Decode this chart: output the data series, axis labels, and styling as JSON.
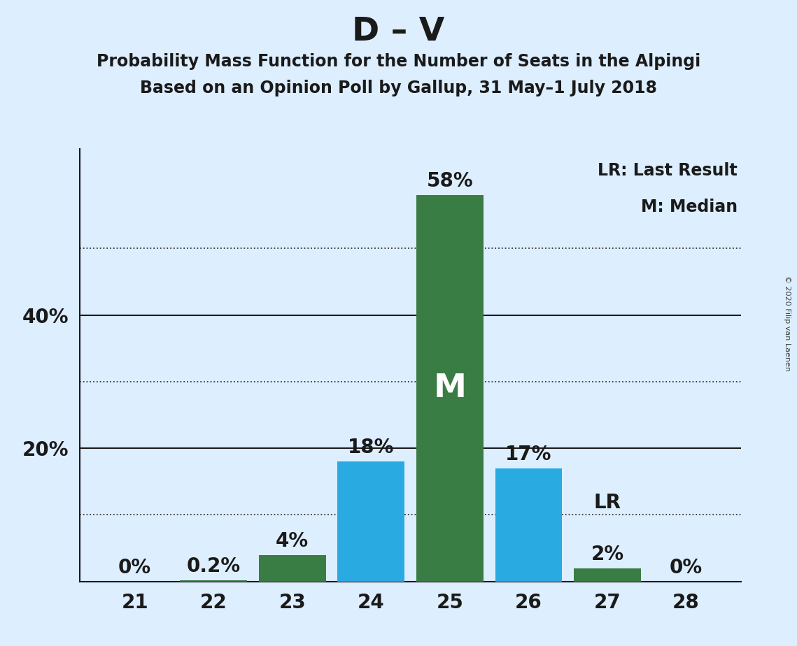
{
  "title": "D – V",
  "subtitle1": "Probability Mass Function for the Number of Seats in the Alpingi",
  "subtitle2": "Based on an Opinion Poll by Gallup, 31 May–1 July 2018",
  "copyright": "© 2020 Filip van Laenen",
  "seats": [
    21,
    22,
    23,
    24,
    25,
    26,
    27,
    28
  ],
  "probabilities": [
    0.0,
    0.2,
    4.0,
    18.0,
    58.0,
    17.0,
    2.0,
    0.0
  ],
  "prob_labels": [
    "0%",
    "0.2%",
    "4%",
    "18%",
    "58%",
    "17%",
    "2%",
    "0%"
  ],
  "bar_colors": [
    "#3a7d44",
    "#3a7d44",
    "#3a7d44",
    "#29abe2",
    "#3a7d44",
    "#29abe2",
    "#3a7d44",
    "#3a7d44"
  ],
  "median_seat": 25,
  "last_result_seat": 27,
  "median_label": "M",
  "lr_label": "LR",
  "legend_lr": "LR: Last Result",
  "legend_m": "M: Median",
  "background_color": "#ddeeff",
  "ylim": [
    0,
    65
  ],
  "solid_yticks": [
    20,
    40
  ],
  "dotted_yticks": [
    10,
    30,
    50
  ],
  "solid_line_color": "#1a1a1a",
  "dotted_line_color": "#333333",
  "title_fontsize": 34,
  "subtitle_fontsize": 17,
  "tick_fontsize": 20,
  "pct_label_fontsize": 20,
  "legend_fontsize": 17,
  "m_label_fontsize": 34,
  "lr_label_fontsize": 20,
  "copyright_fontsize": 8
}
